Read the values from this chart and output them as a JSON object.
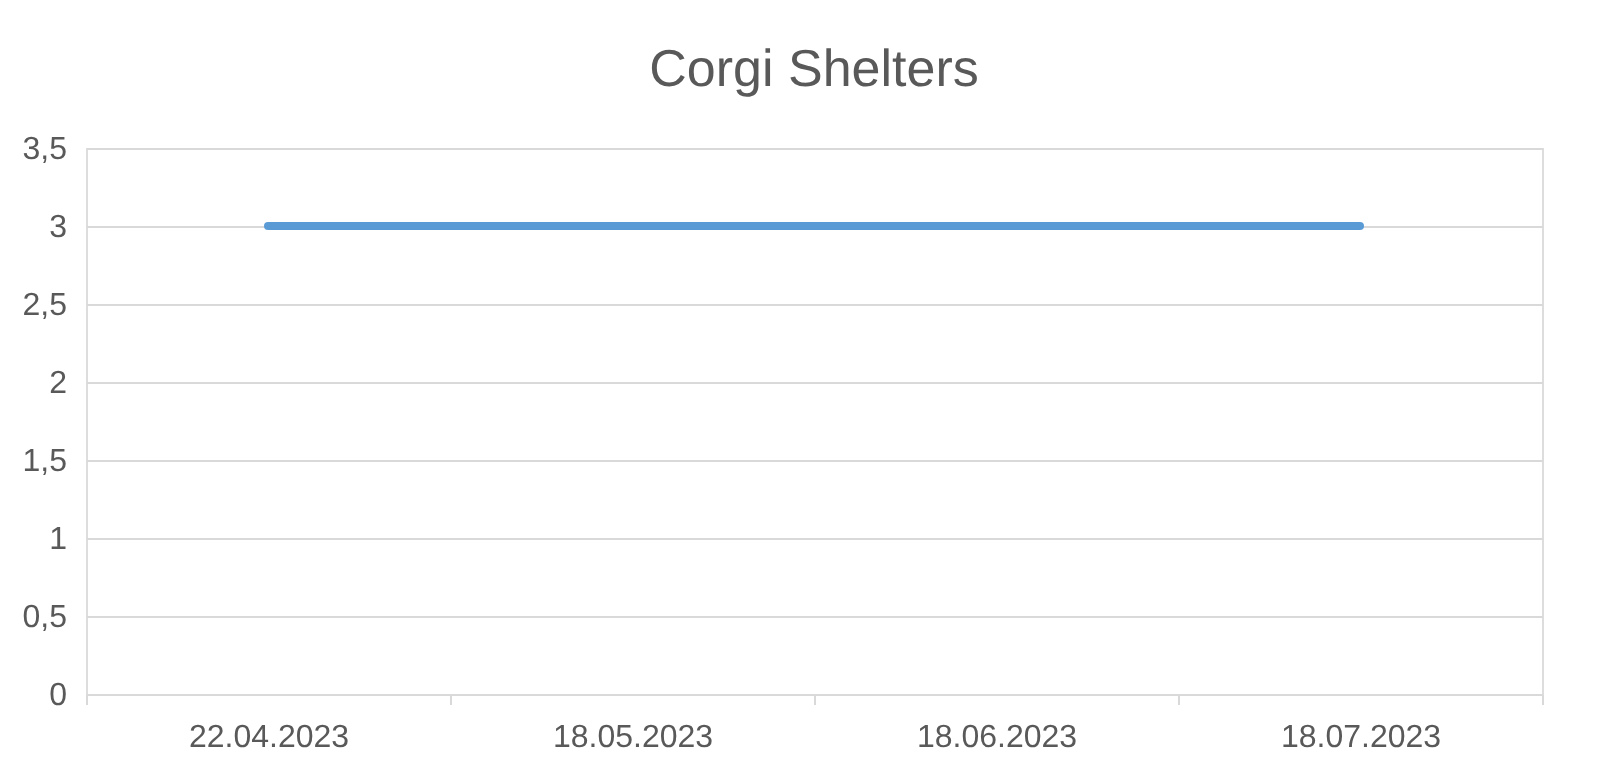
{
  "chart_data": {
    "type": "line",
    "title": "Corgi Shelters",
    "categories": [
      "22.04.2023",
      "18.05.2023",
      "18.06.2023",
      "18.07.2023"
    ],
    "series": [
      {
        "color": "#5b9bd5",
        "values": [
          3,
          3,
          3,
          3
        ]
      }
    ],
    "ylim": [
      0,
      3.5
    ],
    "yticks": [
      0,
      {
        "value": 0.5,
        "label": "0,5"
      },
      1,
      {
        "value": 1.5,
        "label": "1,5"
      },
      2,
      {
        "value": 2.5,
        "label": "2,5"
      },
      3,
      {
        "value": 3.5,
        "label": "3,5"
      }
    ],
    "grid": "y",
    "legend": false,
    "marker": "none",
    "line_style": "solid"
  }
}
